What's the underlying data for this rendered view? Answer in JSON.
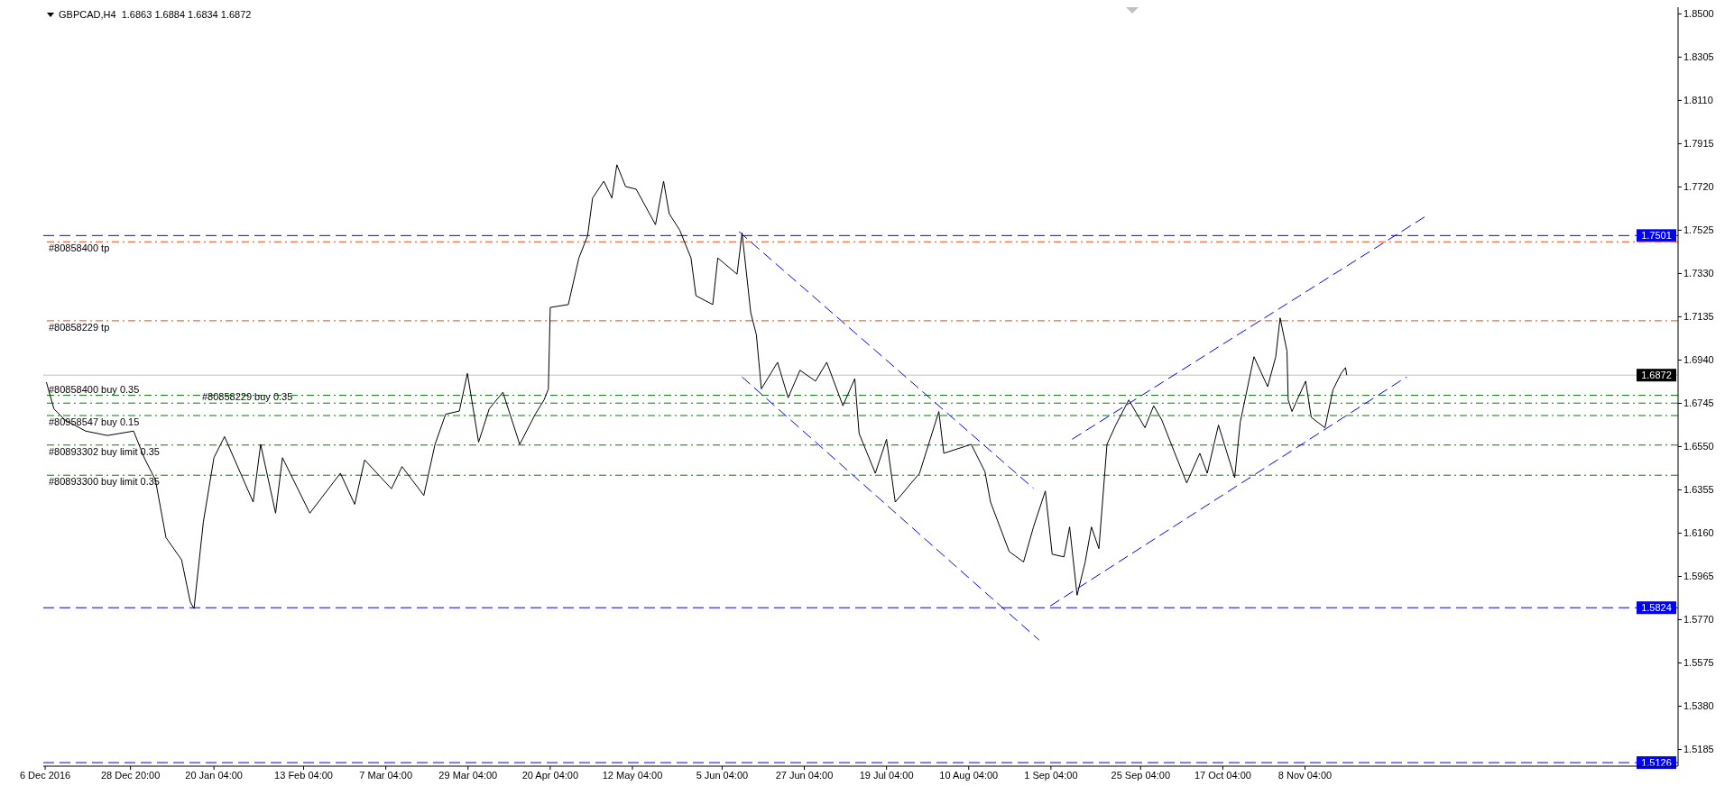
{
  "chart_data": {
    "type": "line",
    "title": "GBPCAD,H4  1.6863 1.6884 1.6834 1.6872",
    "xlim": [
      "2016-12-05T12:00",
      "2018-02-16"
    ],
    "xticks": [
      {
        "value": "2016-12-06",
        "label": "6 Dec 2016"
      },
      {
        "value": "2016-12-28T20:00",
        "label": "28 Dec 20:00"
      },
      {
        "value": "2017-01-20T04:00",
        "label": "20 Jan 04:00"
      },
      {
        "value": "2017-02-13T04:00",
        "label": "13 Feb 04:00"
      },
      {
        "value": "2017-03-07T04:00",
        "label": "7 Mar 04:00"
      },
      {
        "value": "2017-03-29T04:00",
        "label": "29 Mar 04:00"
      },
      {
        "value": "2017-04-20T04:00",
        "label": "20 Apr 04:00"
      },
      {
        "value": "2017-05-12T04:00",
        "label": "12 May 04:00"
      },
      {
        "value": "2017-06-05T04:00",
        "label": "5 Jun 04:00"
      },
      {
        "value": "2017-06-27T04:00",
        "label": "27 Jun 04:00"
      },
      {
        "value": "2017-07-19T04:00",
        "label": "19 Jul 04:00"
      },
      {
        "value": "2017-08-10T04:00",
        "label": "10 Aug 04:00"
      },
      {
        "value": "2017-09-01T04:00",
        "label": "1 Sep 04:00"
      },
      {
        "value": "2017-09-25T04:00",
        "label": "25 Sep 04:00"
      },
      {
        "value": "2017-10-17T04:00",
        "label": "17 Oct 04:00"
      },
      {
        "value": "2017-11-08T04:00",
        "label": "8 Nov 04:00"
      }
    ],
    "ylim": [
      1.511,
      1.853
    ],
    "yticks": [
      {
        "value": 1.85,
        "label": "1.8500"
      },
      1.8305,
      {
        "value": 1.811,
        "label": "1.8110"
      },
      1.7915,
      {
        "value": 1.772,
        "label": "1.7720"
      },
      1.7525,
      {
        "value": 1.733,
        "label": "1.7330"
      },
      1.7135,
      {
        "value": 1.694,
        "label": "1.6940"
      },
      1.6745,
      {
        "value": 1.655,
        "label": "1.6550"
      },
      1.6355,
      {
        "value": 1.616,
        "label": "1.6160"
      },
      1.5965,
      {
        "value": 1.577,
        "label": "1.5770"
      },
      1.5575,
      {
        "value": 1.538,
        "label": "1.5380"
      },
      1.5185
    ],
    "marker": "none",
    "series": [
      {
        "color": "#000000",
        "line_style": "solid",
        "x": [
          "2016-12-06T08:00",
          "2016-12-08T08:00",
          "2016-12-11T08:00",
          "2016-12-16T20:00",
          "2016-12-22T16:00",
          "2016-12-29T16:00",
          "2017-01-01T12:00",
          "2017-01-04T12:00",
          "2017-01-07T08:00",
          "2017-01-11T12:00",
          "2017-01-13T20:00",
          "2017-01-14T20:00",
          "2017-01-17T08:00",
          "2017-01-20T04:00",
          "2017-01-23T00:00",
          "2017-01-30T16:00",
          "2017-02-01T16:00",
          "2017-02-05T16:00",
          "2017-02-07T12:00",
          "2017-02-14T20:00",
          "2017-02-23T00:00",
          "2017-02-26T20:00",
          "2017-03-01T12:00",
          "2017-03-08T16:00",
          "2017-03-11T12:00",
          "2017-03-17T08:00",
          "2017-03-20T08:00",
          "2017-03-23T04:00",
          "2017-03-26T20:00",
          "2017-03-29T00:00",
          "2017-04-01T00:00",
          "2017-04-03T20:00",
          "2017-04-07T12:00",
          "2017-04-12T00:00",
          "2017-04-16T04:00",
          "2017-04-18T12:00",
          "2017-04-19T16:00",
          "2017-04-20T04:00",
          "2017-04-25T00:00",
          "2017-04-27T20:00",
          "2017-04-30T04:00",
          "2017-05-01T12:00",
          "2017-05-04T12:00",
          "2017-05-06T16:00",
          "2017-05-08T00:00",
          "2017-05-10T08:00",
          "2017-05-13T04:00",
          "2017-05-18T08:00",
          "2017-05-20T12:00",
          "2017-05-22T00:00",
          "2017-05-24T20:00",
          "2017-05-27T20:00",
          "2017-05-29T04:00",
          "2017-06-02T16:00",
          "2017-06-04T00:00",
          "2017-06-09T04:00",
          "2017-06-10T12:00",
          "2017-06-12T20:00",
          "2017-06-14T08:00",
          "2017-06-15T16:00",
          "2017-06-20T00:00",
          "2017-06-22T20:00",
          "2017-06-26T00:00",
          "2017-06-30T04:00",
          "2017-07-03T04:00",
          "2017-07-07T12:00",
          "2017-07-10T16:00",
          "2017-07-11T20:00",
          "2017-07-16T04:00",
          "2017-07-19T04:00",
          "2017-07-21T12:00",
          "2017-07-28T00:00",
          "2017-08-02T04:00",
          "2017-08-03T12:00",
          "2017-08-10T20:00",
          "2017-08-14T12:00",
          "2017-08-16T00:00",
          "2017-08-21T00:00",
          "2017-08-24T20:00",
          "2017-08-27T12:00",
          "2017-08-30T16:00",
          "2017-09-01T12:00",
          "2017-09-04T16:00",
          "2017-09-06T04:00",
          "2017-09-08T04:00",
          "2017-09-10T08:00",
          "2017-09-12T00:00",
          "2017-09-14T00:00",
          "2017-09-16T04:00",
          "2017-09-18T12:00",
          "2017-09-22T00:00",
          "2017-09-26T08:00",
          "2017-09-28T16:00",
          "2017-09-30T20:00",
          "2017-10-03T16:00",
          "2017-10-07T12:00",
          "2017-10-11T00:00",
          "2017-10-13T00:00",
          "2017-10-16T00:00",
          "2017-10-20T08:00",
          "2017-10-21T20:00",
          "2017-10-25T12:00",
          "2017-10-29T04:00",
          "2017-10-31T08:00",
          "2017-11-01T12:00",
          "2017-11-03T08:00",
          "2017-11-03T16:00",
          "2017-11-04T16:00",
          "2017-11-08T08:00",
          "2017-11-09T20:00",
          "2017-11-13T12:00",
          "2017-11-15T16:00",
          "2017-11-17T20:00",
          "2017-11-19T00:00",
          "2017-11-19T08:00"
        ],
        "values": [
          1.684,
          1.672,
          1.667,
          1.662,
          1.66,
          1.662,
          1.65,
          1.64,
          1.614,
          1.604,
          1.585,
          1.582,
          1.621,
          1.65,
          1.6595,
          1.63,
          1.656,
          1.625,
          1.65,
          1.625,
          1.643,
          1.629,
          1.649,
          1.636,
          1.646,
          1.633,
          1.656,
          1.6696,
          1.671,
          1.688,
          1.657,
          1.672,
          1.6795,
          1.656,
          1.6696,
          1.676,
          1.681,
          1.7177,
          1.719,
          1.74,
          1.75,
          1.767,
          1.7746,
          1.767,
          1.782,
          1.7722,
          1.771,
          1.755,
          1.7746,
          1.76,
          1.7525,
          1.74,
          1.723,
          1.719,
          1.74,
          1.7327,
          1.7513,
          1.7153,
          1.7054,
          1.681,
          1.693,
          1.677,
          1.6894,
          1.6845,
          1.693,
          1.6734,
          1.6856,
          1.6609,
          1.643,
          1.6583,
          1.63,
          1.643,
          1.6708,
          1.652,
          1.656,
          1.6437,
          1.63,
          1.6077,
          1.603,
          1.6188,
          1.635,
          1.6065,
          1.6053,
          1.6188,
          1.588,
          1.603,
          1.6188,
          1.609,
          1.656,
          1.6647,
          1.676,
          1.6635,
          1.6734,
          1.667,
          1.6548,
          1.6386,
          1.652,
          1.643,
          1.6647,
          1.641,
          1.666,
          1.6955,
          1.682,
          1.6955,
          1.713,
          1.698,
          1.676,
          1.6708,
          1.6845,
          1.6682,
          1.6635,
          1.6807,
          1.688,
          1.6906,
          1.6872
        ]
      },
      {
        "type": "line",
        "color": "#0000ff",
        "line_style": "dashed",
        "x": [
          "2017-06-09T16:00",
          "2017-08-27T12:00"
        ],
        "values": [
          1.7519,
          1.6362
        ]
      },
      {
        "type": "line",
        "color": "#0000ff",
        "line_style": "dashed",
        "x": [
          "2017-06-10T12:00",
          "2017-08-29T00:00"
        ],
        "values": [
          1.6864,
          1.5678
        ]
      },
      {
        "type": "line",
        "color": "#0000ff",
        "line_style": "dashed",
        "x": [
          "2017-09-01T00:00",
          "2017-12-05T08:00"
        ],
        "values": [
          1.5832,
          1.6864
        ]
      },
      {
        "type": "line",
        "color": "#0000ff",
        "line_style": "dashed",
        "x": [
          "2017-09-06T20:00",
          "2017-12-10T20:00"
        ],
        "values": [
          1.6583,
          1.7592
        ]
      }
    ],
    "ref_lines": [
      {
        "axis": "y",
        "value": 1.7501,
        "label": "1.7501",
        "color": "#0000ff",
        "line_style": "dashed"
      },
      {
        "axis": "y",
        "value": 1.5824,
        "label": "1.5824",
        "color": "#0000ff",
        "line_style": "dashed"
      },
      {
        "axis": "y",
        "value": 1.5126,
        "label": "1.5126",
        "color": "#0000ff",
        "line_style": "dashed"
      },
      {
        "axis": "y",
        "value": 1.6872,
        "label": "1.6872",
        "color": "#c0c0c0",
        "line_style": "solid"
      },
      {
        "axis": "y",
        "value": 1.7473,
        "label": "#80858400 tp",
        "color": "#ff4500",
        "line_style": "dashdot"
      },
      {
        "axis": "y",
        "value": 1.7117,
        "label": "#80858229 tp",
        "color": "#ff4500",
        "line_style": "dashdot"
      },
      {
        "axis": "y",
        "value": 1.6781,
        "label": "#80858400 buy 0.35",
        "color": "#008000",
        "line_style": "dashdot"
      },
      {
        "axis": "y",
        "value": 1.6746,
        "label": "#80858229 buy 0.35",
        "color": "#008000",
        "line_style": "dashdot"
      },
      {
        "axis": "y",
        "value": 1.669,
        "label": "#80958547 buy 0.15",
        "color": "#008000",
        "line_style": "dashdot"
      },
      {
        "axis": "y",
        "value": 1.6557,
        "label": "#80893302 buy limit 0.35",
        "color": "#008000",
        "line_style": "dashdot"
      },
      {
        "axis": "y",
        "value": 1.6421,
        "label": "#80893300 buy limit 0.35",
        "color": "#008000",
        "line_style": "dashdot"
      }
    ]
  }
}
